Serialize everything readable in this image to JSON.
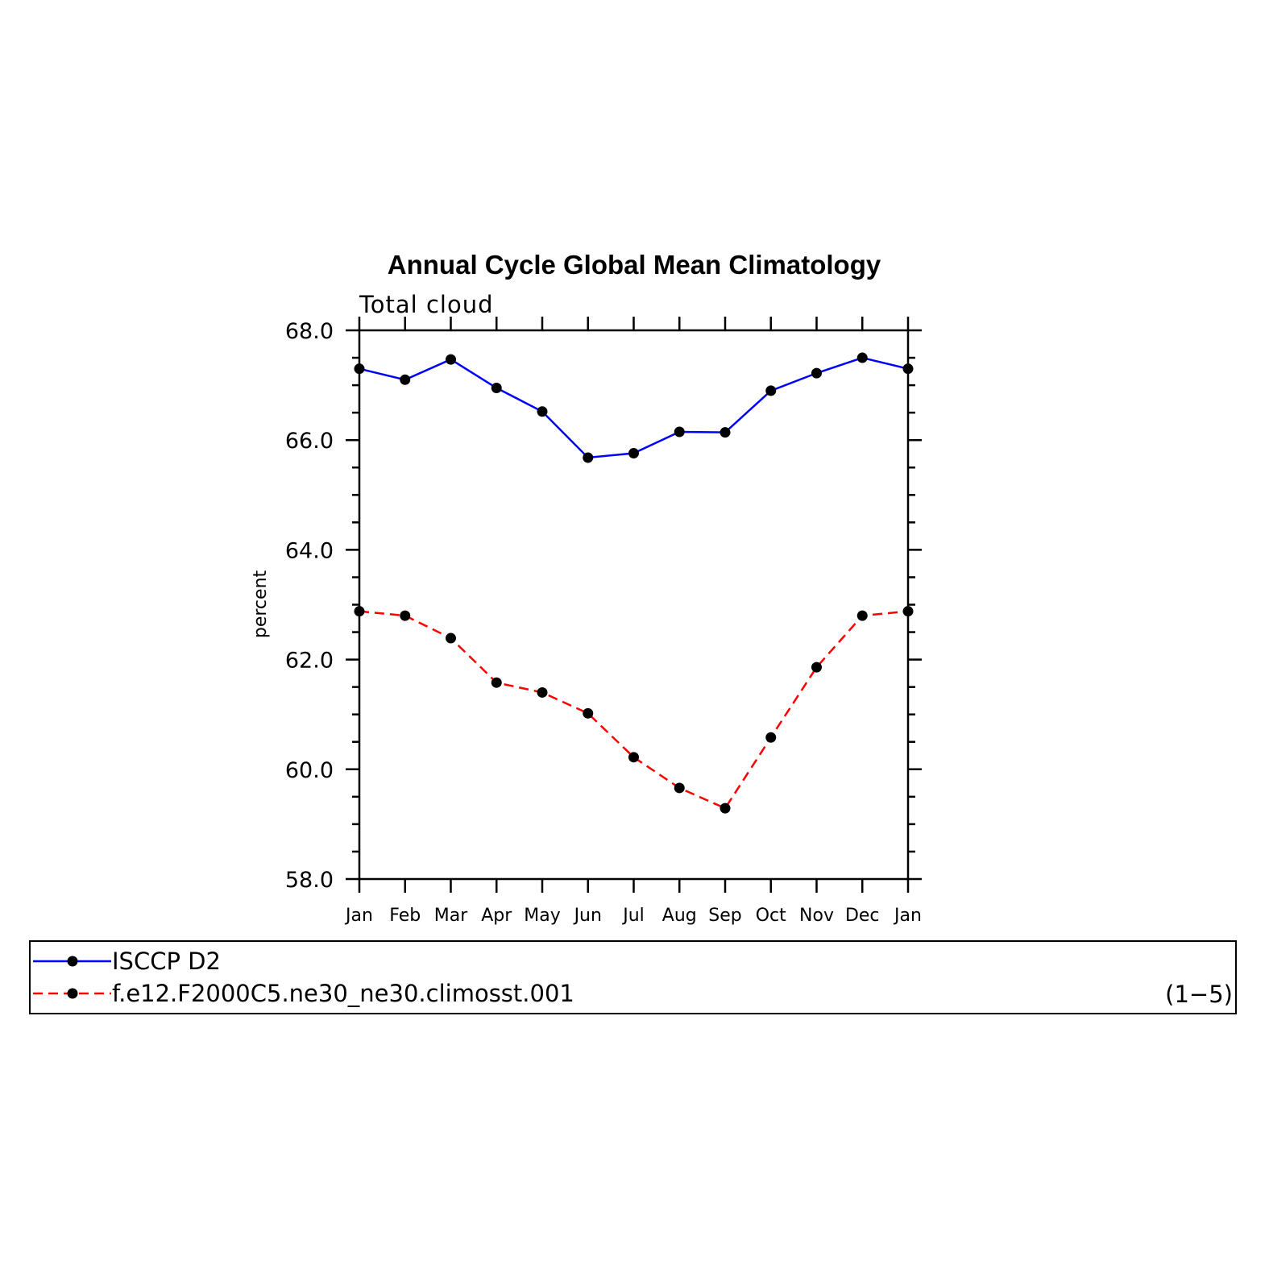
{
  "chart_data": {
    "type": "line",
    "title": "Annual Cycle Global Mean Climatology",
    "subtitle": "Total cloud",
    "xlabel": "",
    "ylabel": "percent",
    "categories": [
      "Jan",
      "Feb",
      "Mar",
      "Apr",
      "May",
      "Jun",
      "Jul",
      "Aug",
      "Sep",
      "Oct",
      "Nov",
      "Dec",
      "Jan"
    ],
    "ylim": [
      58.0,
      68.0
    ],
    "yticks": [
      "58.0",
      "60.0",
      "62.0",
      "64.0",
      "66.0",
      "68.0"
    ],
    "series": [
      {
        "name": "ISCCP D2",
        "color": "#0000ff",
        "dash": "solid",
        "values": [
          67.3,
          67.1,
          67.47,
          66.95,
          66.52,
          65.68,
          65.76,
          66.15,
          66.14,
          66.9,
          67.22,
          67.5,
          67.3
        ]
      },
      {
        "name": "f.e12.F2000C5.ne30_ne30.climosst.001",
        "color": "#ff0000",
        "dash": "dashed",
        "values": [
          62.88,
          62.8,
          62.39,
          61.58,
          61.4,
          61.02,
          60.22,
          59.66,
          59.29,
          60.58,
          61.86,
          62.8,
          62.88
        ]
      }
    ],
    "legend": {
      "placement": "bottom",
      "note": "(1−5)"
    },
    "grid": false
  }
}
